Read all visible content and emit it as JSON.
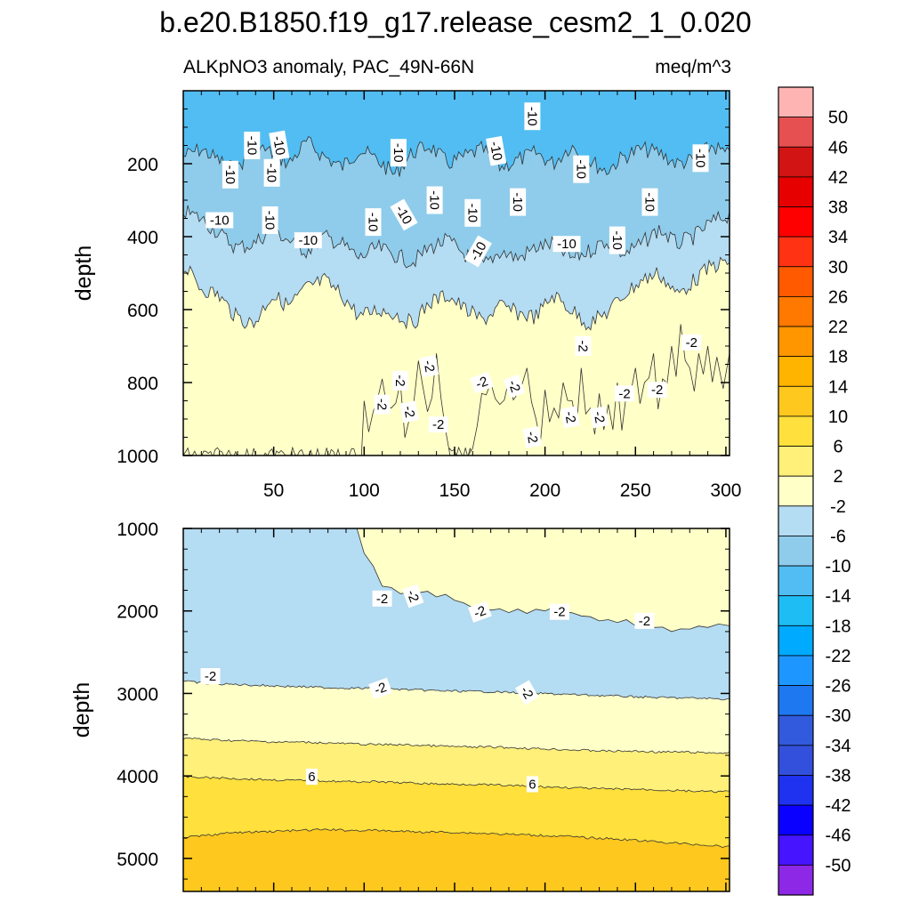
{
  "chart_data": {
    "type": "heatmap",
    "title": "b.e20.B1850.f19_g17.release_cesm2_1_0.020",
    "subtitle_left": "ALKpNO3 anomaly, PAC_49N-66N",
    "subtitle_right": "meq/m^3",
    "xlim": [
      0,
      302
    ],
    "x_ticks": [
      50,
      100,
      150,
      200,
      250,
      300
    ],
    "panels": [
      {
        "id": "upper",
        "ylabel": "depth",
        "ylim": [
          0,
          1000
        ],
        "y_ticks": [
          200,
          400,
          600,
          800,
          1000
        ],
        "levels": [
          {
            "name": "-14 to -10",
            "color": "#52bdf2",
            "boundary_depth": [
              180,
              160,
              190,
              220,
              150,
              170,
              200,
              140,
              180,
              210,
              160,
              190,
              230,
              170,
              150,
              200,
              180,
              160,
              210,
              190,
              170,
              200,
              150,
              190,
              220,
              180,
              160,
              170,
              200,
              190,
              150,
              180
            ]
          },
          {
            "name": "-10 to -6",
            "color": "#8fcceb",
            "boundary_depth": [
              330,
              350,
              390,
              430,
              420,
              380,
              410,
              440,
              400,
              420,
              460,
              430,
              450,
              470,
              430,
              410,
              450,
              480,
              440,
              460,
              430,
              420,
              460,
              440,
              410,
              450,
              420,
              380,
              420,
              400,
              360,
              340
            ]
          },
          {
            "name": "-6 to -2",
            "color": "#b4dcf2",
            "boundary_depth": [
              480,
              540,
              560,
              620,
              640,
              560,
              590,
              540,
              520,
              560,
              620,
              600,
              610,
              640,
              580,
              560,
              600,
              630,
              590,
              610,
              620,
              560,
              600,
              640,
              610,
              560,
              520,
              500,
              560,
              520,
              480,
              470
            ]
          },
          {
            "name": "-2 to 2",
            "color": "#ffffc8",
            "boundary_depth": [
              1000,
              1000,
              1000,
              1000,
              1000,
              1000,
              1000,
              1000,
              1000,
              1000,
              1000,
              1000,
              1000,
              1000,
              1000,
              1000,
              1000,
              1000,
              1000,
              1000,
              1000,
              1000,
              1000,
              1000,
              1000,
              1000,
              1000,
              1000,
              1000,
              1000,
              1000,
              1000
            ]
          }
        ],
        "bottom_color": "#ffffc8",
        "near_zero_region": {
          "x": [
            0,
            97,
            100,
            105,
            110,
            115,
            120,
            125,
            130,
            135,
            140,
            145,
            150,
            155,
            160,
            165,
            170,
            175,
            180,
            185,
            190,
            195,
            200,
            205,
            210,
            215,
            220,
            225,
            230,
            235,
            240,
            245,
            250,
            255,
            260,
            265,
            270,
            275,
            280,
            285,
            290,
            295,
            302
          ],
          "top_depth": [
            1000,
            1000,
            850,
            880,
            790,
            870,
            800,
            900,
            740,
            880,
            720,
            930,
            1000,
            1000,
            980,
            830,
            800,
            860,
            790,
            830,
            760,
            900,
            820,
            870,
            800,
            850,
            760,
            870,
            830,
            860,
            800,
            830,
            760,
            800,
            720,
            790,
            700,
            640,
            760,
            720,
            700,
            730,
            720
          ]
        },
        "contour_labels": [
          {
            "text": "-10",
            "x": 38,
            "y": 150,
            "rot": 90
          },
          {
            "text": "-10",
            "x": 53,
            "y": 150,
            "rot": 80
          },
          {
            "text": "-10",
            "x": 26,
            "y": 230,
            "rot": 90
          },
          {
            "text": "-10",
            "x": 49,
            "y": 225,
            "rot": 90
          },
          {
            "text": "-10",
            "x": 20,
            "y": 355,
            "rot": 0
          },
          {
            "text": "-10",
            "x": 48,
            "y": 355,
            "rot": 90
          },
          {
            "text": "-10",
            "x": 69,
            "y": 410,
            "rot": 0
          },
          {
            "text": "-10",
            "x": 119,
            "y": 170,
            "rot": 90
          },
          {
            "text": "-10",
            "x": 105,
            "y": 360,
            "rot": 90
          },
          {
            "text": "-10",
            "x": 122,
            "y": 340,
            "rot": 60
          },
          {
            "text": "-10",
            "x": 139,
            "y": 300,
            "rot": 90
          },
          {
            "text": "-10",
            "x": 160,
            "y": 335,
            "rot": 90
          },
          {
            "text": "-10",
            "x": 163,
            "y": 440,
            "rot": -60
          },
          {
            "text": "-10",
            "x": 173,
            "y": 165,
            "rot": 80
          },
          {
            "text": "-10",
            "x": 193,
            "y": 70,
            "rot": 90
          },
          {
            "text": "-10",
            "x": 185,
            "y": 305,
            "rot": 90
          },
          {
            "text": "-10",
            "x": 220,
            "y": 215,
            "rot": 90
          },
          {
            "text": "-10",
            "x": 212,
            "y": 420,
            "rot": 0
          },
          {
            "text": "-10",
            "x": 240,
            "y": 410,
            "rot": 90
          },
          {
            "text": "-10",
            "x": 258,
            "y": 305,
            "rot": 90
          },
          {
            "text": "-10",
            "x": 286,
            "y": 185,
            "rot": 90
          },
          {
            "text": "-2",
            "x": 110,
            "y": 860,
            "rot": 90
          },
          {
            "text": "-2",
            "x": 120,
            "y": 795,
            "rot": 90
          },
          {
            "text": "-2",
            "x": 125,
            "y": 880,
            "rot": 80
          },
          {
            "text": "-2",
            "x": 136,
            "y": 755,
            "rot": 80
          },
          {
            "text": "-2",
            "x": 141,
            "y": 915,
            "rot": 0
          },
          {
            "text": "-2",
            "x": 165,
            "y": 800,
            "rot": -20
          },
          {
            "text": "-2",
            "x": 183,
            "y": 810,
            "rot": 70
          },
          {
            "text": "-2",
            "x": 193,
            "y": 950,
            "rot": 80
          },
          {
            "text": "-2",
            "x": 214,
            "y": 895,
            "rot": 80
          },
          {
            "text": "-2",
            "x": 221,
            "y": 700,
            "rot": 90
          },
          {
            "text": "-2",
            "x": 230,
            "y": 895,
            "rot": 80
          },
          {
            "text": "-2",
            "x": 244,
            "y": 830,
            "rot": 0
          },
          {
            "text": "-2",
            "x": 262,
            "y": 820,
            "rot": 0
          },
          {
            "text": "-2",
            "x": 281,
            "y": 690,
            "rot": 0
          }
        ]
      },
      {
        "id": "lower",
        "ylabel": "depth",
        "ylim": [
          1000,
          5400
        ],
        "y_ticks": [
          1000,
          2000,
          3000,
          4000,
          5000
        ],
        "levels": [
          {
            "name": "-6 to -2",
            "color": "#b4dcf2",
            "boundary_depth": [
              2850,
              2880,
              2890,
              2900,
              2910,
              2920,
              2930,
              2935,
              2940,
              2950,
              2960,
              2970,
              2975,
              2980,
              2990,
              3000,
              3010,
              3020,
              3030,
              3040,
              3050,
              3055,
              3060,
              3070
            ]
          },
          {
            "name": "-2 to 2",
            "color": "#ffffc8",
            "boundary_depth": [
              3540,
              3560,
              3570,
              3580,
              3590,
              3590,
              3600,
              3610,
              3620,
              3620,
              3630,
              3640,
              3650,
              3650,
              3660,
              3670,
              3680,
              3690,
              3700,
              3700,
              3710,
              3710,
              3720,
              3720
            ]
          },
          {
            "name": "2 to 6",
            "color": "#fff07a",
            "boundary_depth": [
              4010,
              4020,
              4030,
              4040,
              4050,
              4055,
              4060,
              4070,
              4070,
              4080,
              4090,
              4100,
              4100,
              4110,
              4120,
              4130,
              4140,
              4150,
              4160,
              4160,
              4170,
              4180,
              4190,
              4190
            ]
          },
          {
            "name": "6 to 10",
            "color": "#ffe03c",
            "boundary_depth": [
              4750,
              4720,
              4690,
              4680,
              4670,
              4660,
              4650,
              4660,
              4660,
              4670,
              4680,
              4680,
              4690,
              4700,
              4710,
              4720,
              4730,
              4750,
              4760,
              4780,
              4800,
              4820,
              4840,
              4860
            ]
          }
        ],
        "bottom_color": "#ffc81e",
        "near_zero_region": {
          "x": [
            96,
            100,
            110,
            120,
            130,
            140,
            150,
            160,
            170,
            180,
            190,
            200,
            210,
            220,
            230,
            240,
            250,
            260,
            270,
            280,
            290,
            302
          ],
          "bottom_depth": [
            1000,
            1300,
            1700,
            1790,
            1780,
            1830,
            1870,
            1960,
            1990,
            2020,
            2030,
            2000,
            2010,
            2060,
            2120,
            2140,
            2180,
            2200,
            2250,
            2220,
            2200,
            2180
          ]
        },
        "contour_labels": [
          {
            "text": "-2",
            "x": 110,
            "y": 1850,
            "rot": 0
          },
          {
            "text": "-2",
            "x": 127,
            "y": 1820,
            "rot": 70
          },
          {
            "text": "-2",
            "x": 164,
            "y": 2010,
            "rot": -20
          },
          {
            "text": "-2",
            "x": 208,
            "y": 2010,
            "rot": 0
          },
          {
            "text": "-2",
            "x": 255,
            "y": 2120,
            "rot": 0
          },
          {
            "text": "-2",
            "x": 15,
            "y": 2790,
            "rot": 0
          },
          {
            "text": "-2",
            "x": 109,
            "y": 2940,
            "rot": -20
          },
          {
            "text": "-2",
            "x": 190,
            "y": 2990,
            "rot": 60
          },
          {
            "text": "6",
            "x": 71,
            "y": 4010,
            "rot": 0
          },
          {
            "text": "6",
            "x": 193,
            "y": 4100,
            "rot": 0
          }
        ]
      }
    ],
    "colorbar": {
      "labels": [
        "50",
        "46",
        "42",
        "38",
        "34",
        "30",
        "26",
        "22",
        "18",
        "14",
        "10",
        "6",
        "2",
        "-2",
        "-6",
        "-10",
        "-14",
        "-18",
        "-22",
        "-26",
        "-30",
        "-34",
        "-38",
        "-42",
        "-46",
        "-50"
      ],
      "colors": [
        "#ffb4b4",
        "#e65050",
        "#d21414",
        "#e60000",
        "#ff0000",
        "#ff3214",
        "#ff5a00",
        "#ff7800",
        "#ff9600",
        "#ffb400",
        "#ffc81e",
        "#ffe03c",
        "#fff07a",
        "#ffffc8",
        "#b4dcf2",
        "#8fcceb",
        "#52bdf2",
        "#1ebef5",
        "#00aaff",
        "#1e96ff",
        "#1e78f0",
        "#325adc",
        "#3250dc",
        "#1e32f0",
        "#0a00ff",
        "#4614ff",
        "#8c28e6"
      ]
    }
  }
}
